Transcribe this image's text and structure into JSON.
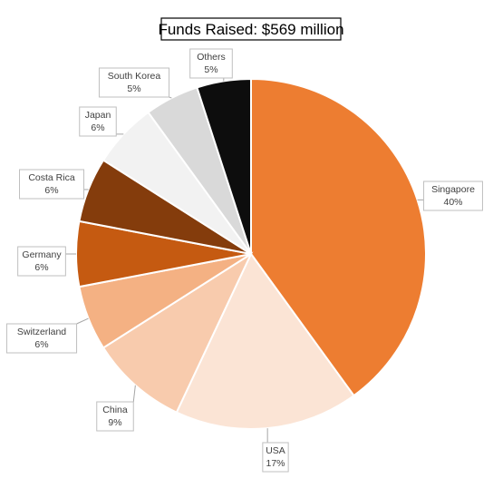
{
  "chart_data": {
    "type": "pie",
    "title": "Funds Raised: $569 million",
    "start_angle_deg": 0,
    "direction": "clockwise",
    "slices": [
      {
        "label": "Singapore",
        "percent_label": "40%",
        "value": 40,
        "color": "#ED7D31"
      },
      {
        "label": "USA",
        "percent_label": "17%",
        "value": 17,
        "color": "#FBE4D5"
      },
      {
        "label": "China",
        "percent_label": "9%",
        "value": 9,
        "color": "#F8CBAD"
      },
      {
        "label": "Switzerland",
        "percent_label": "6%",
        "value": 6,
        "color": "#F4B183"
      },
      {
        "label": "Germany",
        "percent_label": "6%",
        "value": 6,
        "color": "#C55A11"
      },
      {
        "label": "Costa Rica",
        "percent_label": "6%",
        "value": 6,
        "color": "#843C0C"
      },
      {
        "label": "Japan",
        "percent_label": "6%",
        "value": 6,
        "color": "#F2F2F2"
      },
      {
        "label": "South Korea",
        "percent_label": "5%",
        "value": 5,
        "color": "#D9D9D9"
      },
      {
        "label": "Others",
        "percent_label": "5%",
        "value": 5,
        "color": "#0D0D0D"
      }
    ],
    "legend": "none",
    "data_labels": "callouts outside slices"
  }
}
